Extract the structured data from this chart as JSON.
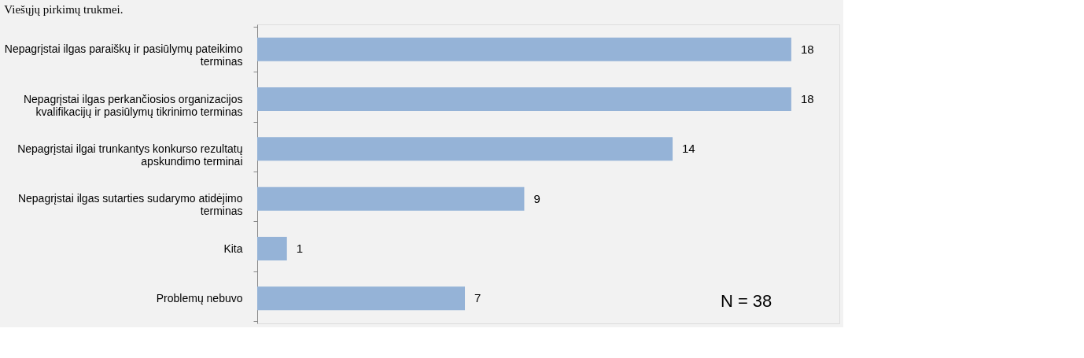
{
  "chart_data": {
    "type": "bar",
    "orientation": "horizontal",
    "title": "Viešųjų pirkimų trukmei.",
    "categories": [
      "Nepagrįstai ilgas paraiškų ir pasiūlymų pateikimo terminas",
      "Nepagrįstai ilgas perkančiosios organizacijos kvalifikacijų ir pasiūlymų tikrinimo terminas",
      "Nepagrįstai ilgai trunkantys konkurso rezultatų apskundimo terminai",
      "Nepagrįstai ilgas sutarties sudarymo atidėjimo terminas",
      "Kita",
      "Problemų nebuvo"
    ],
    "values": [
      18,
      18,
      14,
      9,
      1,
      7
    ],
    "color": "#95b3d7",
    "data_labels": true,
    "annotations": [
      "N = 38"
    ]
  }
}
